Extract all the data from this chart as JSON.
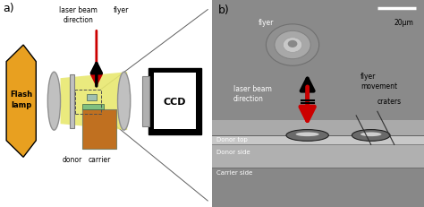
{
  "fig_width": 4.74,
  "fig_height": 2.32,
  "dpi": 100,
  "bg_color": "#ffffff",
  "panel_a": {
    "label": "a)",
    "flash_lamp_color": "#e8a020",
    "flash_lamp_text": "Flash\nlamp",
    "lens_color": "#c0c0c0",
    "lens_edge": "#909090",
    "beam_color": "#e8e870",
    "carrier_color": "#c07020",
    "donor_color": "#c0c0c0",
    "ccd_white": "#ffffff",
    "ccd_gray": "#b0b0b0",
    "ccd_border": "#000000",
    "arrow_black": "#000000",
    "arrow_red": "#cc0000",
    "labels": {
      "laser_beam": "laser beam\ndirection",
      "flyer": "flyer",
      "donor": "donor",
      "carrier": "carrier",
      "ccd": "CCD"
    }
  },
  "panel_b": {
    "label": "b)",
    "scale_bar_text": "20μm",
    "labels": {
      "flyer": "flyer",
      "flyer_movement": "flyer\nmovement",
      "laser_beam": "laser beam\ndirection",
      "craters": "craters",
      "donor_top": "Donor top",
      "donor_side": "Donor side",
      "carrier_side": "Carrier side"
    }
  }
}
